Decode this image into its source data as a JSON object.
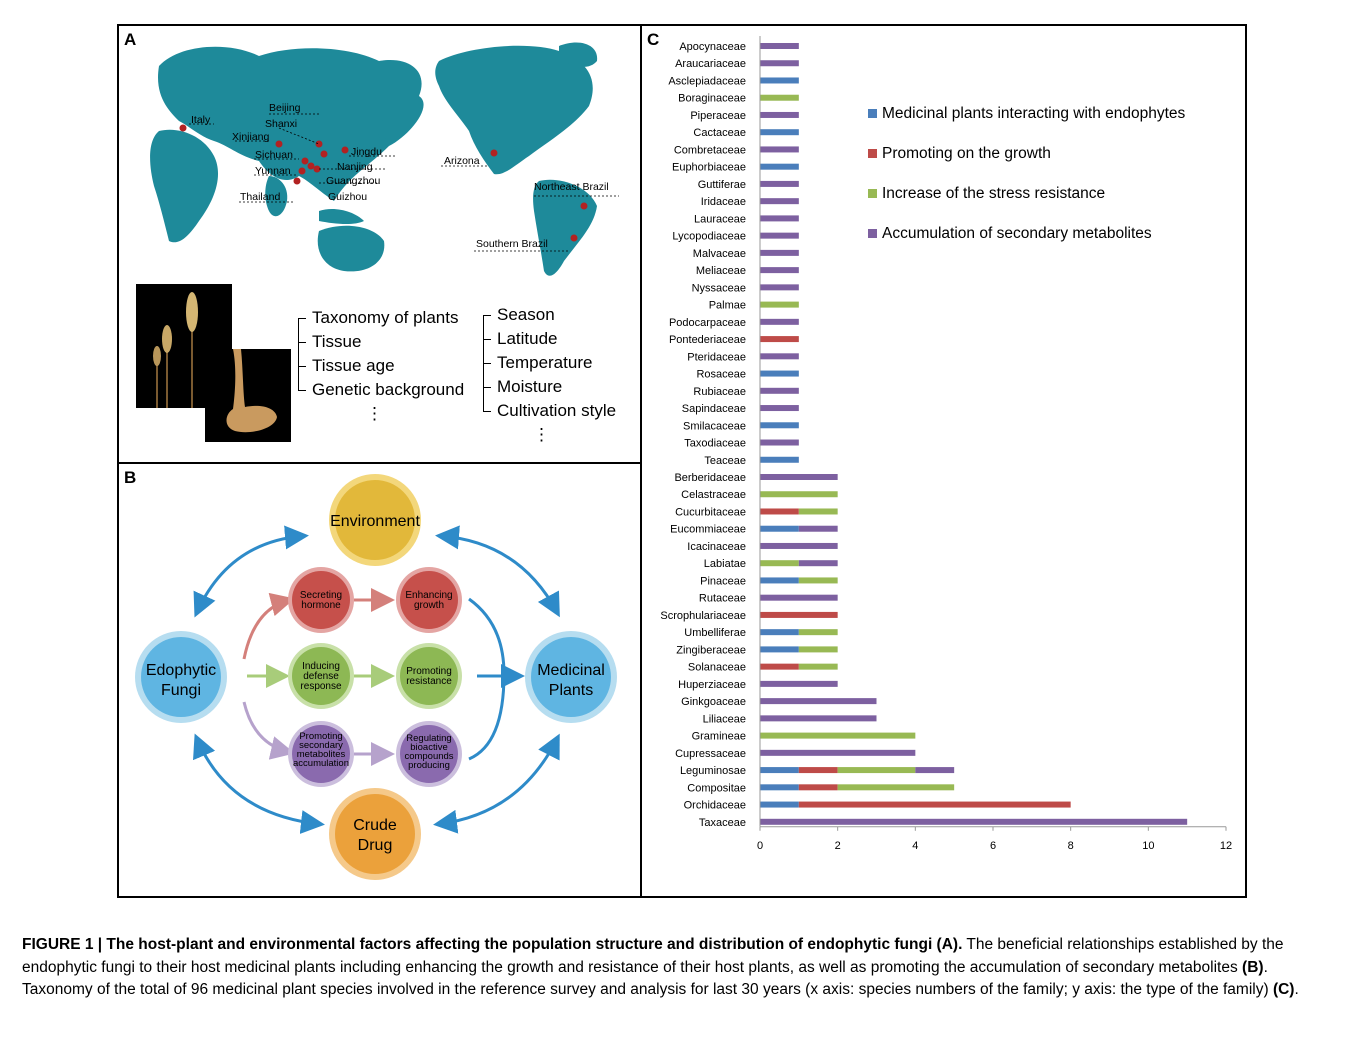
{
  "panel_a": {
    "letter": "A",
    "locations": [
      "Italy",
      "Beijing",
      "Shanxi",
      "Xinjiang",
      "Sichuan",
      "Jingdu",
      "Nanjing",
      "Yunnan",
      "Guangzhou",
      "Thailand",
      "Guizhou",
      "Arizona",
      "Northeast Brazil",
      "Southern Brazil"
    ],
    "plant_factors": [
      "Taxonomy of plants",
      "Tissue",
      "Tissue age",
      "Genetic background"
    ],
    "env_factors": [
      "Season",
      "Latitude",
      "Temperature",
      "Moisture",
      "Cultivation style"
    ],
    "ellipsis": "⋮"
  },
  "panel_b": {
    "letter": "B",
    "environment": "Environment",
    "fungi": [
      "Edophytic",
      "Fungi"
    ],
    "plants": [
      "Medicinal",
      "Plants"
    ],
    "drug": [
      "Crude",
      "Drug"
    ],
    "secreting": [
      "Secreting",
      "hormone"
    ],
    "enhancing": [
      "Enhancing",
      "growth"
    ],
    "inducing": [
      "Inducing",
      "defense",
      "response"
    ],
    "promoting_res": [
      "Promoting",
      "resistance"
    ],
    "promoting_sec": [
      "Promoting",
      "secondary",
      "metabolites",
      "accumulation"
    ],
    "regulating": [
      "Regulating",
      "bioactive",
      "compounds",
      "producing"
    ]
  },
  "panel_c": {
    "letter": "C"
  },
  "chart_data": {
    "type": "bar",
    "orientation": "horizontal",
    "stacked": true,
    "categories": [
      "Apocynaceae",
      "Araucariaceae",
      "Asclepiadaceae",
      "Boraginaceae",
      "Piperaceae",
      "Cactaceae",
      "Combretaceae",
      "Euphorbiaceae",
      "Guttiferae",
      "Iridaceae",
      "Lauraceae",
      "Lycopodiaceae",
      "Malvaceae",
      "Meliaceae",
      "Nyssaceae",
      "Palmae",
      "Podocarpaceae",
      "Pontederiaceae",
      "Pteridaceae",
      "Rosaceae",
      "Rubiaceae",
      "Sapindaceae",
      "Smilacaceae",
      "Taxodiaceae",
      "Teaceae",
      "Berberidaceae",
      "Celastraceae",
      "Cucurbitaceae",
      "Eucommiaceae",
      "Icacinaceae",
      "Labiatae",
      "Pinaceae",
      "Rutaceae",
      "Scrophulariaceae",
      "Umbelliferae",
      "Zingiberaceae",
      "Solanaceae",
      "Huperziaceae",
      "Ginkgoaceae",
      "Liliaceae",
      "Gramineae",
      "Cupressaceae",
      "Leguminosae",
      "Compositae",
      "Orchidaceae",
      "Taxaceae"
    ],
    "series": [
      {
        "name": "Medicinal plants interacting with endophytes",
        "color": "#4A7EBB",
        "values": [
          0,
          0,
          1,
          0,
          0,
          1,
          0,
          1,
          0,
          0,
          0,
          0,
          0,
          0,
          0,
          0,
          0,
          0,
          0,
          1,
          0,
          0,
          1,
          0,
          1,
          0,
          0,
          0,
          1,
          0,
          0,
          1,
          0,
          0,
          1,
          1,
          0,
          0,
          0,
          0,
          0,
          0,
          1,
          1,
          1,
          0
        ]
      },
      {
        "name": "Promoting on the growth",
        "color": "#BE4B48",
        "values": [
          0,
          0,
          0,
          0,
          0,
          0,
          0,
          0,
          0,
          0,
          0,
          0,
          0,
          0,
          0,
          0,
          0,
          1,
          0,
          0,
          0,
          0,
          0,
          0,
          0,
          0,
          0,
          1,
          0,
          0,
          0,
          0,
          0,
          2,
          0,
          0,
          1,
          0,
          0,
          0,
          0,
          0,
          1,
          1,
          7,
          0
        ]
      },
      {
        "name": "Increase of the stress resistance",
        "color": "#98B954",
        "values": [
          0,
          0,
          0,
          1,
          0,
          0,
          0,
          0,
          0,
          0,
          0,
          0,
          0,
          0,
          0,
          1,
          0,
          0,
          0,
          0,
          0,
          0,
          0,
          0,
          0,
          0,
          2,
          1,
          0,
          0,
          1,
          1,
          0,
          0,
          1,
          1,
          1,
          0,
          0,
          0,
          4,
          0,
          2,
          3,
          0,
          0
        ]
      },
      {
        "name": "Accumulation of secondary metabolites",
        "color": "#7D60A0",
        "values": [
          1,
          1,
          0,
          0,
          1,
          0,
          1,
          0,
          1,
          1,
          1,
          1,
          1,
          1,
          1,
          0,
          1,
          0,
          1,
          0,
          1,
          1,
          0,
          1,
          0,
          2,
          0,
          0,
          1,
          2,
          1,
          0,
          2,
          0,
          0,
          0,
          0,
          2,
          3,
          3,
          0,
          4,
          1,
          0,
          0,
          11
        ]
      }
    ],
    "xticks": [
      0,
      2,
      4,
      6,
      8,
      10,
      12
    ],
    "xlim": [
      0,
      12
    ],
    "legend_position": "top-right"
  },
  "caption": {
    "bold1": "FIGURE 1 | The host-plant and environmental factors affecting the population structure and distribution of endophytic fungi (A).",
    "text1": " The beneficial relationships established by the endophytic fungi to their host medicinal plants including enhancing the growth and resistance of their host plants, as well as promoting the accumulation of secondary metabolites ",
    "bold2": "(B)",
    "text2": ". Taxonomy of the total of 96 medicinal plant species involved in the reference survey and analysis for last 30 years (x axis: species numbers of the family; y axis: the type of the family) ",
    "bold3": "(C)",
    "text3": "."
  }
}
